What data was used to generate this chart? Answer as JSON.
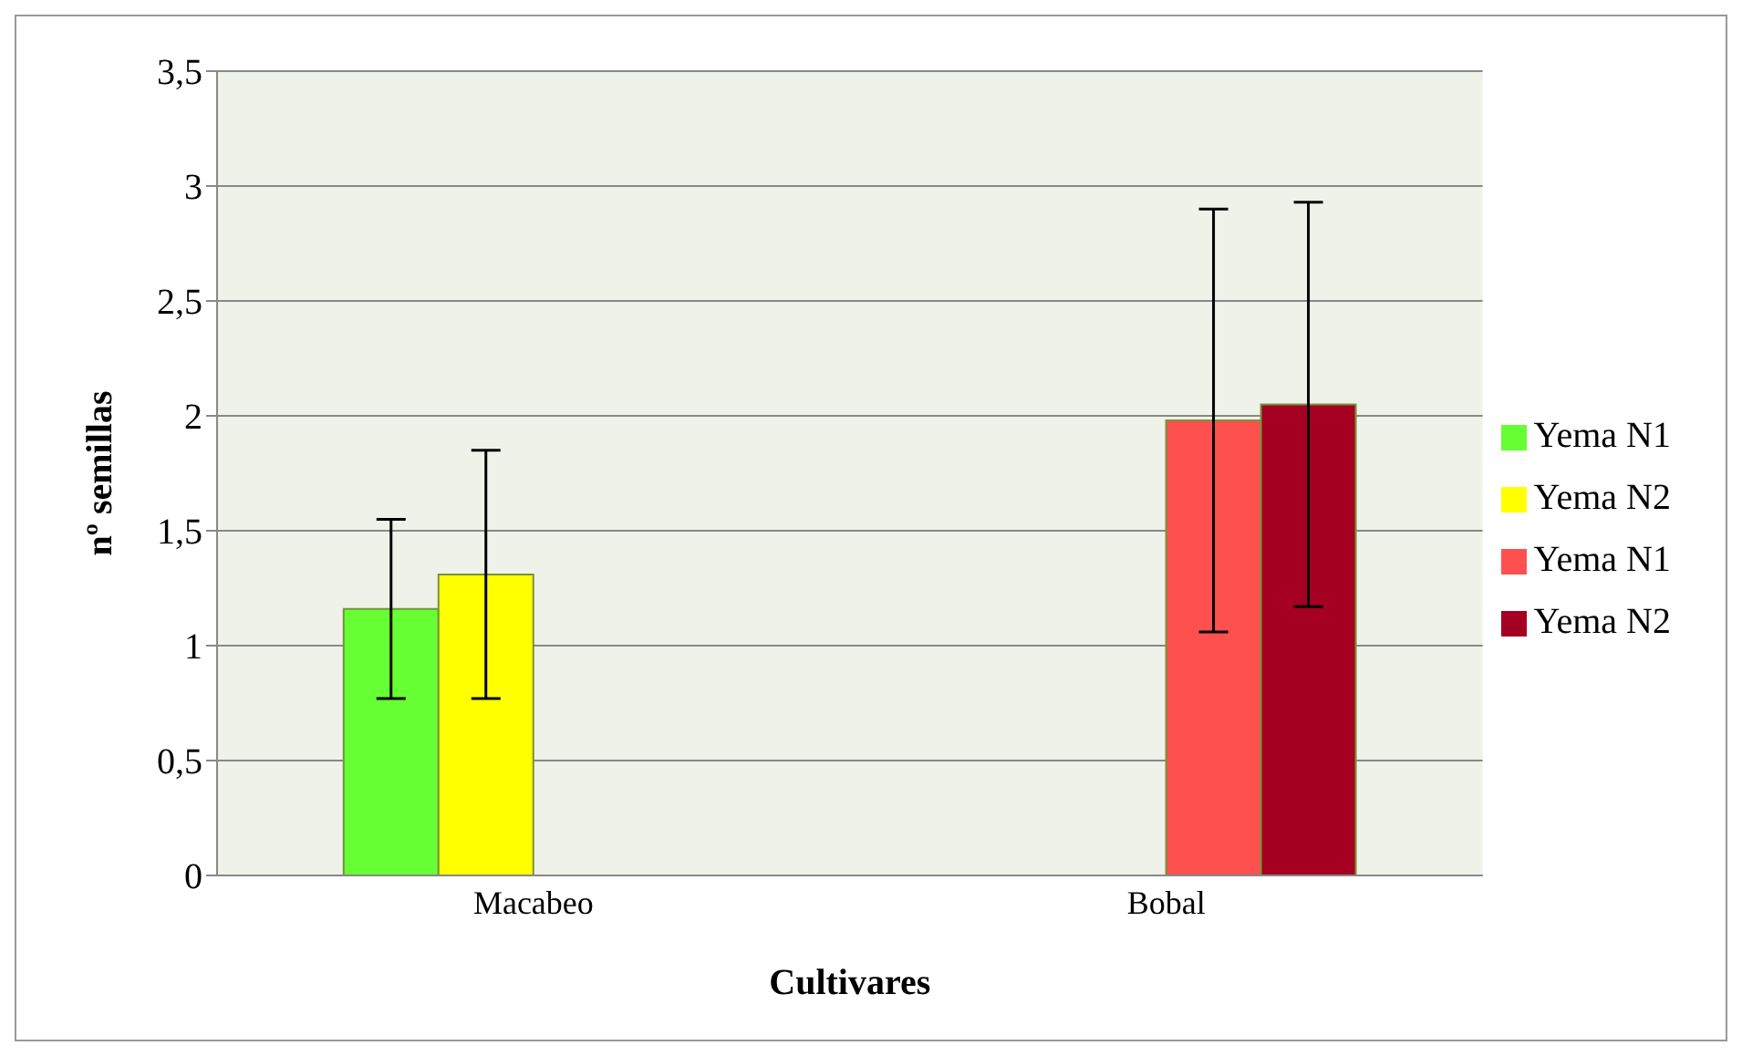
{
  "chart_data": {
    "type": "bar",
    "xlabel": "Cultivares",
    "ylabel": "nº semillas",
    "categories": [
      "Macabeo",
      "Bobal"
    ],
    "series": [
      {
        "name": "Yema N1",
        "color": "#66ff33",
        "values": [
          1.16,
          null
        ],
        "errors": [
          0.39,
          null
        ]
      },
      {
        "name": "Yema N2",
        "color": "#ffff00",
        "values": [
          1.31,
          null
        ],
        "errors": [
          0.54,
          null
        ]
      },
      {
        "name": "Yema N1",
        "color": "#ff5050",
        "values": [
          null,
          1.98
        ],
        "errors": [
          null,
          0.92
        ]
      },
      {
        "name": "Yema N2",
        "color": "#a50021",
        "values": [
          null,
          2.05
        ],
        "errors": [
          null,
          0.88
        ]
      }
    ],
    "ylim": [
      0,
      3.5
    ],
    "yticks": [
      0,
      {
        "value": 0.5,
        "label": "0,5"
      },
      1,
      {
        "value": 1.5,
        "label": "1,5"
      },
      2,
      {
        "value": 2.5,
        "label": "2,5"
      },
      3,
      {
        "value": 3.5,
        "label": "3,5"
      }
    ],
    "grid": "y",
    "legend": "right"
  }
}
